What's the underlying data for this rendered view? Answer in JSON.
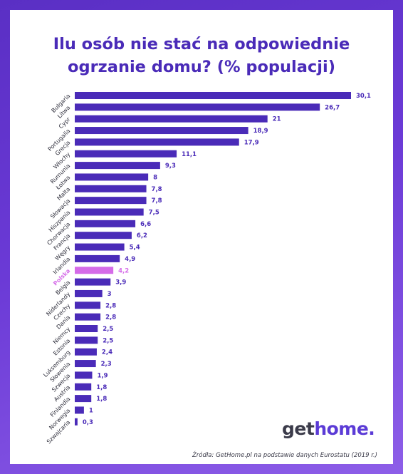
{
  "title_line1": "Ilu osób nie stać na odpowiednie",
  "title_line2": "ogrzanie domu? (% populacji)",
  "logo_part1": "get",
  "logo_part2": "home.",
  "source": "Źródła: GetHome.pl na podstawie danych Eurostatu (2019 r.)",
  "colors": {
    "bar": "#4a2bb8",
    "highlight": "#d56be8",
    "value": "#4a2bb8",
    "label": "#2d2d3a"
  },
  "chart_data": {
    "type": "bar",
    "orientation": "horizontal",
    "title": "Ilu osób nie stać na odpowiednie ogrzanie domu? (% populacji)",
    "categories": [
      "Bułgaria",
      "Litwa",
      "Cypr",
      "Portugalia",
      "Grecja",
      "Włochy",
      "Rumunia",
      "Łotwa",
      "Malta",
      "Słowacja",
      "Hiszpania",
      "Chorwacja",
      "Francja",
      "Węgry",
      "Irlandia",
      "Polska",
      "Belgia",
      "Niderlandy",
      "Czechy",
      "Dania",
      "Niemcy",
      "Estonia",
      "Luksemburg",
      "Słowenia",
      "Szwecja",
      "Austria",
      "Finlandia",
      "Norwegia",
      "Szwajcaria"
    ],
    "values": [
      30.1,
      26.7,
      21,
      18.9,
      17.9,
      11.1,
      9.3,
      8,
      7.8,
      7.8,
      7.5,
      6.6,
      6.2,
      5.4,
      4.9,
      4.2,
      3.9,
      3,
      2.8,
      2.8,
      2.5,
      2.5,
      2.4,
      2.3,
      1.9,
      1.8,
      1.8,
      1,
      0.3
    ],
    "value_labels": [
      "30,1",
      "26,7",
      "21",
      "18,9",
      "17,9",
      "11,1",
      "9,3",
      "8",
      "7,8",
      "7,8",
      "7,5",
      "6,6",
      "6,2",
      "5,4",
      "4,9",
      "4,2",
      "3,9",
      "3",
      "2,8",
      "2,8",
      "2,5",
      "2,5",
      "2,4",
      "2,3",
      "1,9",
      "1,8",
      "1,8",
      "1",
      "0,3"
    ],
    "highlight": "Polska",
    "xlim": [
      0,
      30.1
    ],
    "grid": false,
    "legend": "none"
  }
}
